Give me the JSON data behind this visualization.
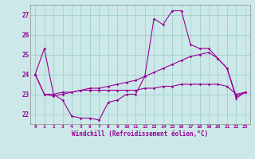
{
  "xlabel": "Windchill (Refroidissement éolien,°C)",
  "background_color": "#cce8e8",
  "line_color": "#990099",
  "grid_color": "#99cccc",
  "x": [
    0,
    1,
    2,
    3,
    4,
    5,
    6,
    7,
    8,
    9,
    10,
    11,
    12,
    13,
    14,
    15,
    16,
    17,
    18,
    19,
    20,
    21,
    22,
    23
  ],
  "line1": [
    24.0,
    25.3,
    23.0,
    22.7,
    21.9,
    21.8,
    21.8,
    21.7,
    22.6,
    22.7,
    23.0,
    23.0,
    23.9,
    26.8,
    26.5,
    27.2,
    27.2,
    25.5,
    25.3,
    25.3,
    24.8,
    24.3,
    22.8,
    23.1
  ],
  "line2": [
    24.0,
    23.0,
    22.9,
    23.0,
    23.1,
    23.2,
    23.3,
    23.3,
    23.4,
    23.5,
    23.6,
    23.7,
    23.9,
    24.1,
    24.3,
    24.5,
    24.7,
    24.9,
    25.0,
    25.1,
    24.8,
    24.3,
    22.9,
    23.1
  ],
  "line3": [
    24.0,
    23.0,
    23.0,
    23.1,
    23.1,
    23.2,
    23.2,
    23.2,
    23.2,
    23.2,
    23.2,
    23.2,
    23.3,
    23.3,
    23.4,
    23.4,
    23.5,
    23.5,
    23.5,
    23.5,
    23.5,
    23.4,
    23.0,
    23.1
  ],
  "ylim": [
    21.5,
    27.5
  ],
  "yticks": [
    22,
    23,
    24,
    25,
    26,
    27
  ],
  "xtick_labels": [
    "0",
    "1",
    "2",
    "3",
    "4",
    "5",
    "6",
    "7",
    "8",
    "9",
    "10",
    "11",
    "12",
    "13",
    "14",
    "15",
    "16",
    "17",
    "18",
    "19",
    "20",
    "21",
    "22",
    "23"
  ]
}
